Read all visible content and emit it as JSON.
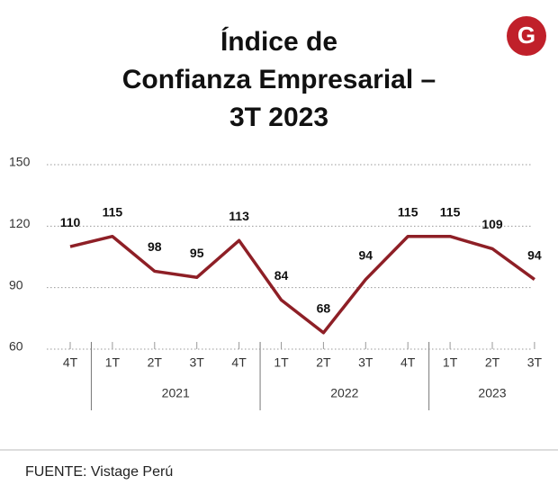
{
  "chart_data": {
    "type": "line",
    "title": [
      "Índice de",
      "Confianza Empresarial –",
      "3T 2023"
    ],
    "categories": [
      "4T",
      "1T",
      "2T",
      "3T",
      "4T",
      "1T",
      "2T",
      "3T",
      "4T",
      "1T",
      "2T",
      "3T"
    ],
    "groups": [
      "2021",
      "2022",
      "2023"
    ],
    "series": [
      {
        "name": "Índice de Confianza Empresarial",
        "color": "#8e1f26",
        "values": [
          110,
          115,
          98,
          95,
          113,
          84,
          68,
          94,
          115,
          115,
          109,
          94
        ]
      }
    ],
    "ylim": [
      60,
      150
    ],
    "yticks": [
      60,
      90,
      120,
      150
    ],
    "grid": true,
    "source": "FUENTE: Vistage Perú"
  }
}
